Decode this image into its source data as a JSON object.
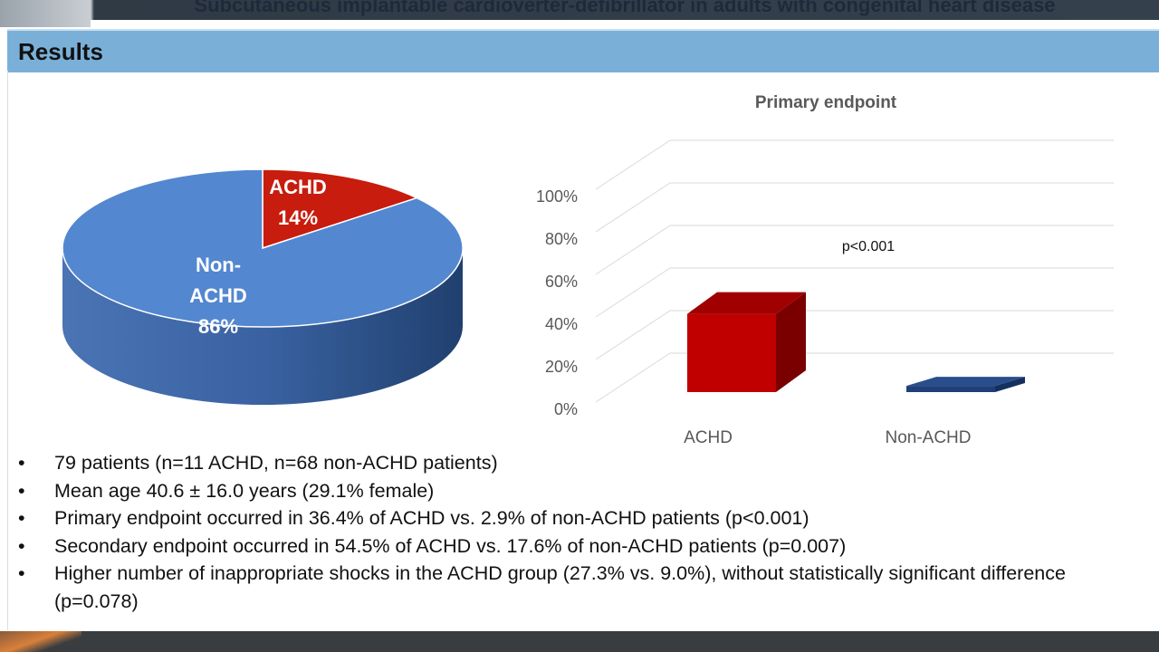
{
  "deck_title": "Subcutaneous implantable cardioverter-defibrillator in adults with congenital heart disease",
  "slide_title": "Results",
  "chart_data": [
    {
      "type": "pie",
      "slices": [
        {
          "label": "ACHD",
          "value": 14,
          "display": "14%",
          "color": "#c81c0e"
        },
        {
          "label": "Non-ACHD",
          "value": 86,
          "display": "86%",
          "color": "#5387d0"
        }
      ]
    },
    {
      "type": "bar",
      "title": "Primary endpoint",
      "categories": [
        "ACHD",
        "Non-ACHD"
      ],
      "values": [
        36.4,
        2.9
      ],
      "colors": [
        "#c00000",
        "#1f3f7a"
      ],
      "ylim": [
        0,
        100
      ],
      "yticks": [
        "0%",
        "20%",
        "40%",
        "60%",
        "80%",
        "100%"
      ],
      "annotation": "p<0.001",
      "grid": true
    }
  ],
  "bullets": [
    "79 patients (n=11 ACHD, n=68 non-ACHD patients)",
    "Mean age 40.6 ± 16.0 years (29.1% female)",
    "Primary endpoint occurred in 36.4% of ACHD vs. 2.9% of non-ACHD patients (p<0.001)",
    "Secondary endpoint occurred in 54.5% of ACHD vs. 17.6% of non-ACHD patients (p=0.007)",
    "Higher number of inappropriate shocks in the ACHD group (27.3% vs. 9.0%), without statistically significant difference (p=0.078)"
  ],
  "bullet_symbol": "•"
}
